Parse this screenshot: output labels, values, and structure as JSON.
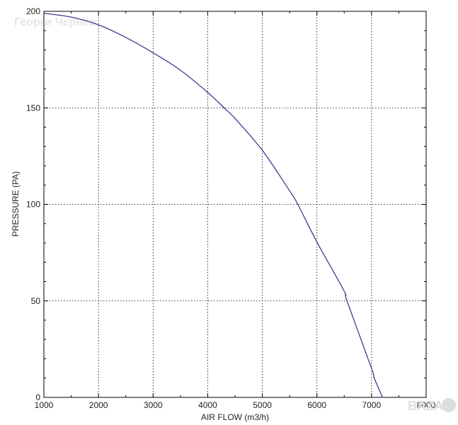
{
  "chart_data": {
    "type": "line",
    "title": "",
    "xlabel": "AIR FLOW (m3/h)",
    "ylabel": "PRESSURE (PA)",
    "xlim": [
      1000,
      8000
    ],
    "ylim": [
      0,
      200
    ],
    "x_ticks": [
      "1000",
      "2000",
      "3000",
      "4000",
      "5000",
      "6000",
      "7000",
      "8000"
    ],
    "y_ticks": [
      "0",
      "50",
      "100",
      "150",
      "200"
    ],
    "grid": true,
    "series": [
      {
        "color": "#3a3f8f",
        "x": [
          1000,
          1500,
          2000,
          2500,
          3000,
          3500,
          4000,
          4300,
          4500,
          5000,
          5500,
          5650,
          6000,
          6500,
          6550,
          7000,
          7050,
          7200
        ],
        "y": [
          199,
          197,
          193,
          186.5,
          178.5,
          169.5,
          158,
          150,
          144.5,
          128,
          107,
          100,
          80.5,
          55,
          50,
          15,
          10,
          0
        ]
      }
    ]
  },
  "watermark": "Георги Чернев",
  "logo_text": "BAZAR"
}
